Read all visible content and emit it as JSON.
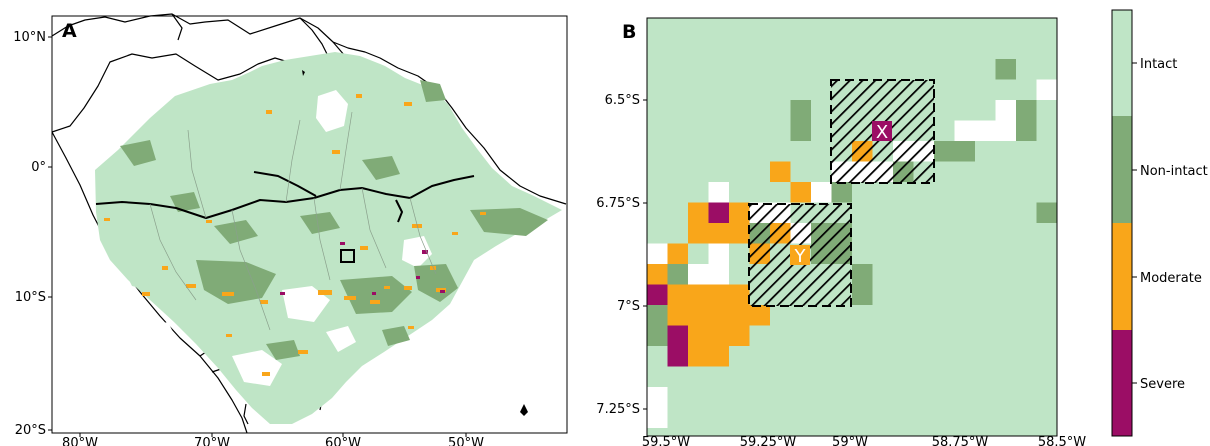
{
  "panel_a": {
    "letter": "A",
    "lat_ticks": [
      "10°N",
      "0°",
      "10°S",
      "20°S"
    ],
    "lon_ticks": [
      "80°W",
      "70°W",
      "60°W",
      "50°W"
    ]
  },
  "panel_b": {
    "letter": "B",
    "lat_ticks": [
      "6.5°S",
      "6.75°S",
      "7°S",
      "7.25°S"
    ],
    "lon_ticks": [
      "59.5°W",
      "59.25°W",
      "59°W",
      "58.75°W",
      "58.5°W"
    ],
    "box_labels": [
      "X",
      "Y"
    ]
  },
  "legend": {
    "categories": [
      {
        "label": "Intact",
        "color": "#bfe5c6"
      },
      {
        "label": "Non-intact",
        "color": "#80ab77"
      },
      {
        "label": "Moderate",
        "color": "#f9a61a"
      },
      {
        "label": "Severe",
        "color": "#9b0d65"
      }
    ]
  },
  "colors": {
    "intact": "#bfe5c6",
    "non_intact": "#80ab77",
    "moderate": "#f9a61a",
    "severe": "#9b0d65",
    "no_data": "#ffffff"
  }
}
